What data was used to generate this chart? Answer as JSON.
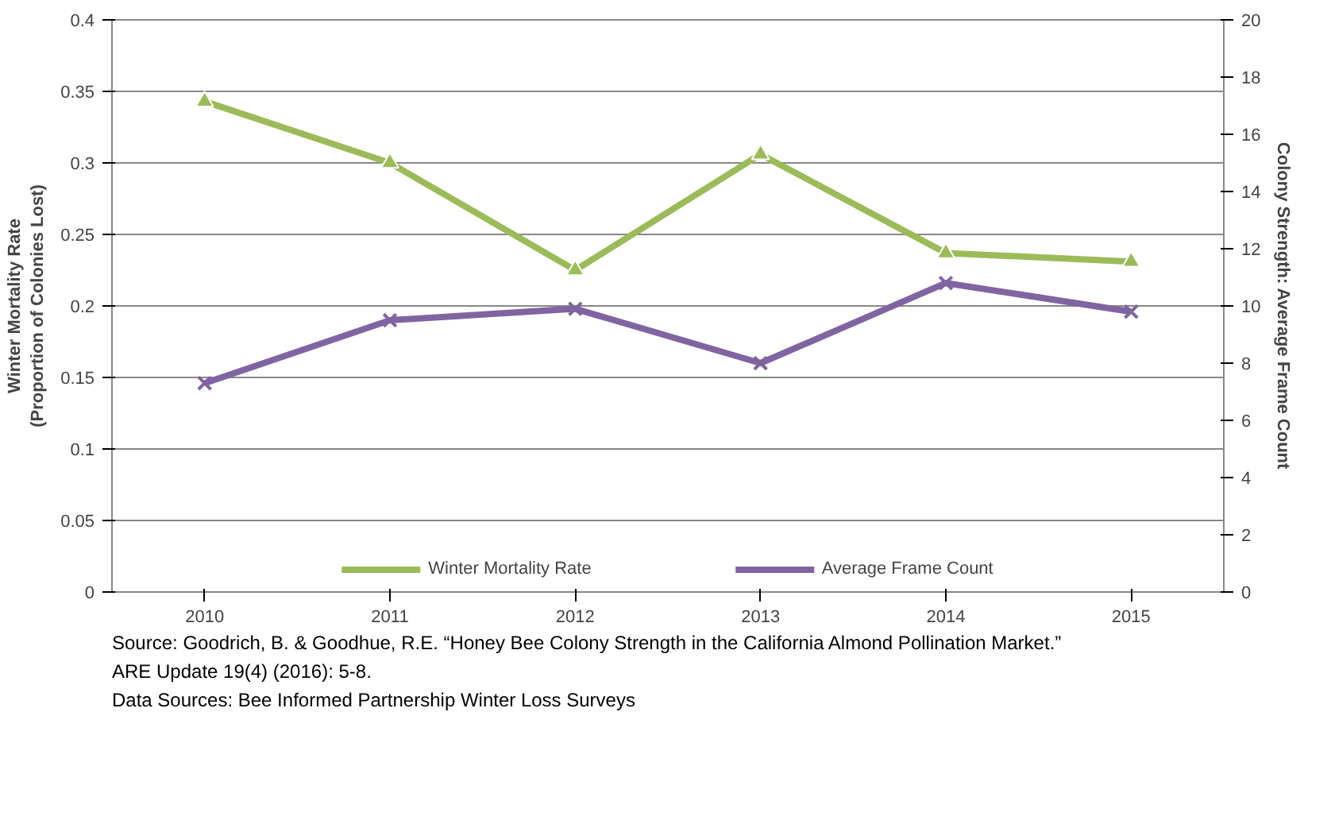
{
  "chart_data": {
    "type": "line",
    "ylabel": "Winter Mortality Rate\n(Proportion of Colonies Lost)",
    "y2label": "Colony Strength: Average Frame Count",
    "categories": [
      "2010",
      "2011",
      "2012",
      "2013",
      "2014",
      "2015"
    ],
    "series": [
      {
        "name": "Winter Mortality Rate",
        "color": "#9bbb59",
        "marker": "triangle",
        "values": [
          0.343,
          0.3,
          0.225,
          0.306,
          0.237,
          0.231
        ]
      },
      {
        "name": "Average Frame Count",
        "color": "#8064a2",
        "marker": "x",
        "axis": "y2",
        "values": [
          7.3,
          9.5,
          9.9,
          8.0,
          10.8,
          9.8
        ]
      }
    ],
    "ylim": [
      0,
      0.4
    ],
    "yticks": [
      0,
      0.05,
      0.1,
      0.15,
      0.2,
      0.25,
      0.3,
      0.35,
      0.4
    ],
    "y2lim": [
      0,
      20
    ],
    "y2ticks": [
      0,
      2,
      4,
      6,
      8,
      10,
      12,
      14,
      16,
      18,
      20
    ],
    "grid": "y",
    "legend": "bottom",
    "annotations": [
      "Source: Goodrich, B. &  Goodhue, R.E. “Honey Bee Colony Strength in the California Almond Pollination Market.”",
      "ARE Update 19(4) (2016): 5-8.",
      "Data Sources: Bee Informed Partnership Winter Loss Surveys"
    ]
  }
}
